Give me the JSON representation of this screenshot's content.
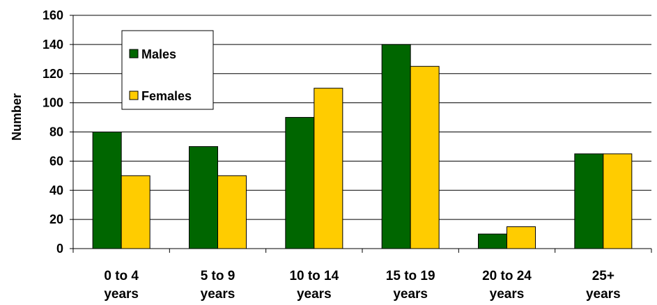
{
  "chart_data": {
    "type": "bar",
    "title": "",
    "xlabel": "",
    "ylabel": "Number",
    "ylim": [
      0,
      160
    ],
    "yticks": [
      0,
      20,
      40,
      60,
      80,
      100,
      120,
      140,
      160
    ],
    "grid": true,
    "legend_position": "top-left",
    "categories": [
      [
        "0 to 4",
        "years"
      ],
      [
        "5 to 9",
        "years"
      ],
      [
        "10 to 14",
        "years"
      ],
      [
        "15 to 19",
        "years"
      ],
      [
        "20 to 24",
        "years"
      ],
      [
        "25+",
        "years"
      ]
    ],
    "series": [
      {
        "name": "Males",
        "color": "#006600",
        "values": [
          80,
          70,
          90,
          140,
          10,
          65
        ]
      },
      {
        "name": "Females",
        "color": "#FFCC00",
        "values": [
          50,
          50,
          110,
          125,
          15,
          65
        ]
      }
    ]
  }
}
